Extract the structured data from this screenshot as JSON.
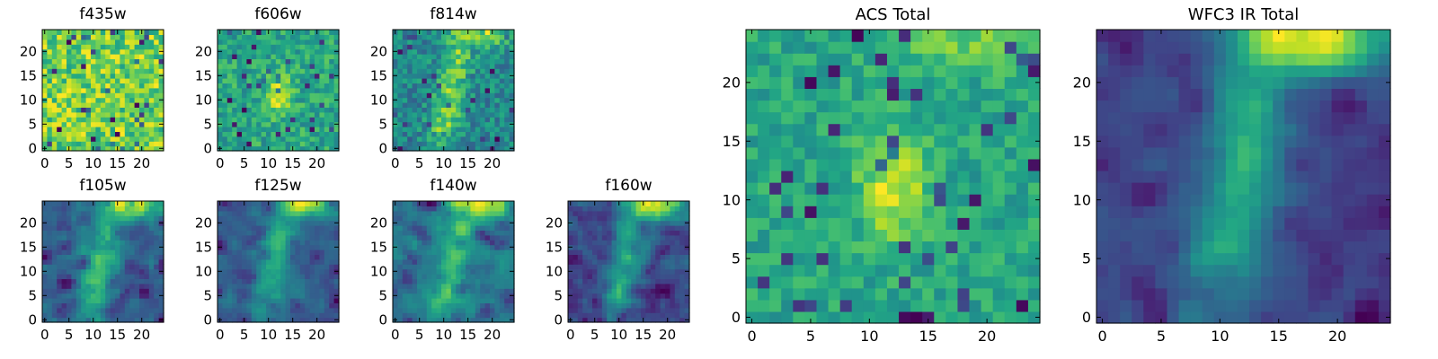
{
  "chart_data": [
    {
      "type": "heatmap",
      "title": "f435w",
      "xlabel": "",
      "ylabel": "",
      "size": "small",
      "xlim": [
        0,
        25
      ],
      "ylim": [
        0,
        25
      ],
      "xticks": [
        0,
        5,
        10,
        15,
        20
      ],
      "yticks": [
        0,
        5,
        10,
        15,
        20
      ],
      "colormap": "viridis",
      "pattern": "noise",
      "seed": 11
    },
    {
      "type": "heatmap",
      "title": "f606w",
      "xlabel": "",
      "ylabel": "",
      "size": "small",
      "xlim": [
        0,
        25
      ],
      "ylim": [
        0,
        25
      ],
      "xticks": [
        0,
        5,
        10,
        15,
        20
      ],
      "yticks": [
        0,
        5,
        10,
        15,
        20
      ],
      "colormap": "viridis",
      "pattern": "noise-center",
      "seed": 23
    },
    {
      "type": "heatmap",
      "title": "f814w",
      "xlabel": "",
      "ylabel": "",
      "size": "small",
      "xlim": [
        0,
        25
      ],
      "ylim": [
        0,
        25
      ],
      "xticks": [
        0,
        5,
        10,
        15,
        20
      ],
      "yticks": [
        0,
        5,
        10,
        15,
        20
      ],
      "colormap": "viridis",
      "pattern": "arc",
      "seed": 37
    },
    {
      "type": "heatmap",
      "title": "f105w",
      "xlabel": "",
      "ylabel": "",
      "size": "small",
      "xlim": [
        0,
        25
      ],
      "ylim": [
        0,
        25
      ],
      "xticks": [
        0,
        5,
        10,
        15,
        20
      ],
      "yticks": [
        0,
        5,
        10,
        15,
        20
      ],
      "colormap": "viridis",
      "pattern": "arc-smooth",
      "seed": 41
    },
    {
      "type": "heatmap",
      "title": "f125w",
      "xlabel": "",
      "ylabel": "",
      "size": "small",
      "xlim": [
        0,
        25
      ],
      "ylim": [
        0,
        25
      ],
      "xticks": [
        0,
        5,
        10,
        15,
        20
      ],
      "yticks": [
        0,
        5,
        10,
        15,
        20
      ],
      "colormap": "viridis",
      "pattern": "arc-smooth",
      "seed": 53
    },
    {
      "type": "heatmap",
      "title": "f140w",
      "xlabel": "",
      "ylabel": "",
      "size": "small",
      "xlim": [
        0,
        25
      ],
      "ylim": [
        0,
        25
      ],
      "xticks": [
        0,
        5,
        10,
        15,
        20
      ],
      "yticks": [
        0,
        5,
        10,
        15,
        20
      ],
      "colormap": "viridis",
      "pattern": "arc-smooth",
      "seed": 67
    },
    {
      "type": "heatmap",
      "title": "f160w",
      "xlabel": "",
      "ylabel": "",
      "size": "small",
      "xlim": [
        0,
        25
      ],
      "ylim": [
        0,
        25
      ],
      "xticks": [
        0,
        5,
        10,
        15,
        20
      ],
      "yticks": [
        0,
        5,
        10,
        15,
        20
      ],
      "colormap": "viridis",
      "pattern": "arc-dark",
      "seed": 79
    },
    {
      "type": "heatmap",
      "title": "ACS Total",
      "xlabel": "",
      "ylabel": "",
      "size": "large",
      "xlim": [
        0,
        25
      ],
      "ylim": [
        0,
        25
      ],
      "xticks": [
        0,
        5,
        10,
        15,
        20
      ],
      "yticks": [
        0,
        5,
        10,
        15,
        20
      ],
      "colormap": "viridis",
      "pattern": "acs-total",
      "seed": 97
    },
    {
      "type": "heatmap",
      "title": "WFC3 IR Total",
      "xlabel": "",
      "ylabel": "",
      "size": "large",
      "xlim": [
        0,
        25
      ],
      "ylim": [
        0,
        25
      ],
      "xticks": [
        0,
        5,
        10,
        15,
        20
      ],
      "yticks": [
        0,
        5,
        10,
        15,
        20
      ],
      "colormap": "viridis",
      "pattern": "ir-total",
      "seed": 131
    }
  ]
}
